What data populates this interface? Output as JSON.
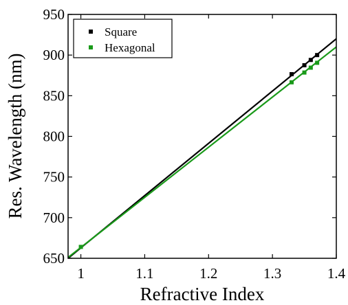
{
  "chart_data": {
    "type": "scatter",
    "title": "",
    "xlabel": "Refractive Index",
    "ylabel": "Res. Wavelength (nm)",
    "xlim": [
      0.98,
      1.4
    ],
    "ylim": [
      650,
      950
    ],
    "x_ticks": [
      1,
      1.1,
      1.2,
      1.3,
      1.4
    ],
    "x_tick_labels": [
      "1",
      "1.1",
      "1.2",
      "1.3",
      "1.4"
    ],
    "y_ticks": [
      650,
      700,
      750,
      800,
      850,
      900,
      950
    ],
    "y_tick_labels": [
      "650",
      "700",
      "750",
      "800",
      "850",
      "900",
      "950"
    ],
    "grid": false,
    "legend_position": "top-left",
    "series": [
      {
        "name": "Square",
        "color": "#000000",
        "points": [
          {
            "x": 1.33,
            "y": 876.5
          },
          {
            "x": 1.35,
            "y": 887.5
          },
          {
            "x": 1.36,
            "y": 894
          },
          {
            "x": 1.37,
            "y": 900
          }
        ],
        "fit_line": [
          [
            0.98,
            650
          ],
          [
            1.4,
            920
          ]
        ]
      },
      {
        "name": "Hexagonal",
        "color": "#1a9a1a",
        "points": [
          {
            "x": 1.0,
            "y": 664
          },
          {
            "x": 1.33,
            "y": 866.5
          },
          {
            "x": 1.35,
            "y": 878.5
          },
          {
            "x": 1.36,
            "y": 884.5
          },
          {
            "x": 1.37,
            "y": 890.5
          }
        ],
        "fit_line": [
          [
            0.98,
            651
          ],
          [
            1.4,
            910
          ]
        ]
      }
    ]
  }
}
